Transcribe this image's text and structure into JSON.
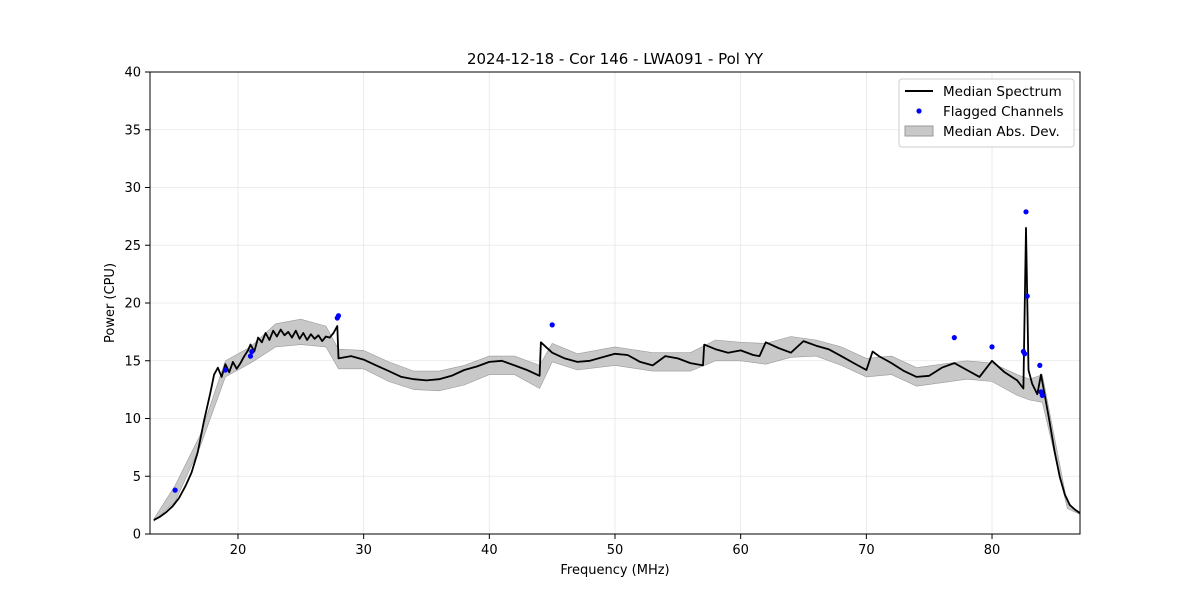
{
  "chart_data": {
    "type": "line",
    "title": "2024-12-18 - Cor 146 - LWA091 - Pol YY",
    "xlabel": "Frequency (MHz)",
    "ylabel": "Power (CPU)",
    "xlim": [
      13,
      87
    ],
    "ylim": [
      0,
      40
    ],
    "xticks": [
      20,
      30,
      40,
      50,
      60,
      70,
      80
    ],
    "yticks": [
      0,
      5,
      10,
      15,
      20,
      25,
      30,
      35,
      40
    ],
    "xtick_labels": [
      "20",
      "30",
      "40",
      "50",
      "60",
      "70",
      "80"
    ],
    "ytick_labels": [
      "0",
      "5",
      "10",
      "15",
      "20",
      "25",
      "30",
      "35",
      "40"
    ],
    "grid": true,
    "legend_position": "top-right",
    "colors": {
      "median": "#000000",
      "flagged": "#0000ff",
      "mad_fill": "#c8c8c8",
      "mad_edge": "#9a9a9a"
    },
    "series": [
      {
        "name": "Median Spectrum",
        "kind": "line",
        "x": [
          13.3,
          13.8,
          14.3,
          14.8,
          15.3,
          15.8,
          16.3,
          16.8,
          17.3,
          17.8,
          18.1,
          18.4,
          18.7,
          19.0,
          19.3,
          19.6,
          19.9,
          20.2,
          20.5,
          20.8,
          21.0,
          21.3,
          21.6,
          21.9,
          22.2,
          22.5,
          22.8,
          23.1,
          23.4,
          23.7,
          24.0,
          24.3,
          24.6,
          24.9,
          25.2,
          25.5,
          25.8,
          26.1,
          26.4,
          26.7,
          27.0,
          27.3,
          27.6,
          27.9,
          28.0,
          29.0,
          30.0,
          31.0,
          32.0,
          33.0,
          34.0,
          35.0,
          36.0,
          37.0,
          38.0,
          39.0,
          40.0,
          41.0,
          42.0,
          43.0,
          44.0,
          44.1,
          45.0,
          46.0,
          47.0,
          48.0,
          49.0,
          50.0,
          51.0,
          52.0,
          53.0,
          54.0,
          55.0,
          56.0,
          57.0,
          57.1,
          58.0,
          59.0,
          60.0,
          61.0,
          61.5,
          62.0,
          63.0,
          64.0,
          65.0,
          66.0,
          67.0,
          68.0,
          69.0,
          70.0,
          70.5,
          71.0,
          72.0,
          73.0,
          74.0,
          75.0,
          76.0,
          77.0,
          78.0,
          79.0,
          80.0,
          81.0,
          82.0,
          82.5,
          82.7,
          82.9,
          83.2,
          83.6,
          83.9,
          84.2,
          84.6,
          85.0,
          85.4,
          85.8,
          86.2,
          86.6,
          87.0
        ],
        "y": [
          1.2,
          1.5,
          1.9,
          2.4,
          3.1,
          4.1,
          5.3,
          7.1,
          9.8,
          12.2,
          13.8,
          14.4,
          13.6,
          14.7,
          14.0,
          14.9,
          14.3,
          14.8,
          15.4,
          15.9,
          16.4,
          15.8,
          17.0,
          16.6,
          17.4,
          16.8,
          17.6,
          17.1,
          17.7,
          17.2,
          17.5,
          17.0,
          17.6,
          16.9,
          17.4,
          16.8,
          17.3,
          16.9,
          17.2,
          16.7,
          17.1,
          17.0,
          17.4,
          18.0,
          15.2,
          15.4,
          15.1,
          14.6,
          14.1,
          13.6,
          13.4,
          13.3,
          13.4,
          13.7,
          14.2,
          14.5,
          14.9,
          15.0,
          14.6,
          14.2,
          13.7,
          16.6,
          15.7,
          15.2,
          14.9,
          15.0,
          15.3,
          15.6,
          15.5,
          14.9,
          14.6,
          15.4,
          15.2,
          14.8,
          14.6,
          16.4,
          16.0,
          15.7,
          15.9,
          15.5,
          15.4,
          16.6,
          16.1,
          15.7,
          16.7,
          16.3,
          16.0,
          15.4,
          14.8,
          14.2,
          15.8,
          15.4,
          14.8,
          14.1,
          13.6,
          13.7,
          14.4,
          14.8,
          14.2,
          13.6,
          15.0,
          14.0,
          13.3,
          12.6,
          26.5,
          14.2,
          13.0,
          12.1,
          13.8,
          12.0,
          9.6,
          7.0,
          4.9,
          3.4,
          2.5,
          2.1,
          1.8
        ]
      },
      {
        "name": "Flagged Channels",
        "kind": "scatter",
        "x": [
          15.0,
          19.0,
          21.0,
          21.1,
          27.9,
          28.0,
          45.0,
          77.0,
          80.0,
          82.5,
          82.6,
          82.7,
          82.8,
          83.8,
          83.9,
          84.0
        ],
        "y": [
          3.8,
          14.2,
          15.4,
          15.8,
          18.7,
          18.9,
          18.1,
          17.0,
          16.2,
          15.8,
          15.6,
          27.9,
          20.6,
          14.6,
          12.3,
          12.0
        ]
      },
      {
        "name": "Median Abs. Dev.",
        "kind": "band",
        "x": [
          13.3,
          15.0,
          17.0,
          19.0,
          21.0,
          23.0,
          25.0,
          27.0,
          28.0,
          30.0,
          32.0,
          34.0,
          36.0,
          38.0,
          40.0,
          42.0,
          44.0,
          45.0,
          47.0,
          50.0,
          53.0,
          56.0,
          58.0,
          60.0,
          62.0,
          64.0,
          66.0,
          68.0,
          70.0,
          72.0,
          74.0,
          76.0,
          78.0,
          80.0,
          82.0,
          83.0,
          84.0,
          86.0,
          87.0
        ],
        "lower": [
          1.1,
          2.8,
          7.6,
          13.6,
          14.8,
          16.2,
          16.4,
          16.2,
          14.3,
          14.3,
          13.2,
          12.5,
          12.4,
          12.9,
          13.8,
          13.8,
          12.6,
          14.9,
          14.2,
          14.6,
          14.1,
          14.1,
          15.0,
          15.0,
          14.7,
          15.3,
          15.4,
          14.6,
          13.6,
          13.8,
          12.8,
          13.1,
          13.4,
          13.2,
          12.0,
          11.6,
          11.4,
          2.2,
          1.7
        ],
        "upper": [
          1.3,
          4.2,
          8.6,
          15.0,
          16.2,
          18.2,
          18.6,
          18.0,
          16.0,
          15.9,
          14.9,
          14.1,
          14.1,
          14.6,
          15.4,
          15.4,
          14.6,
          16.5,
          15.6,
          16.2,
          15.7,
          15.7,
          16.8,
          16.6,
          16.5,
          17.1,
          16.8,
          16.2,
          15.2,
          15.4,
          14.4,
          14.7,
          15.0,
          14.8,
          13.8,
          13.4,
          13.8,
          2.6,
          1.9
        ]
      }
    ]
  }
}
